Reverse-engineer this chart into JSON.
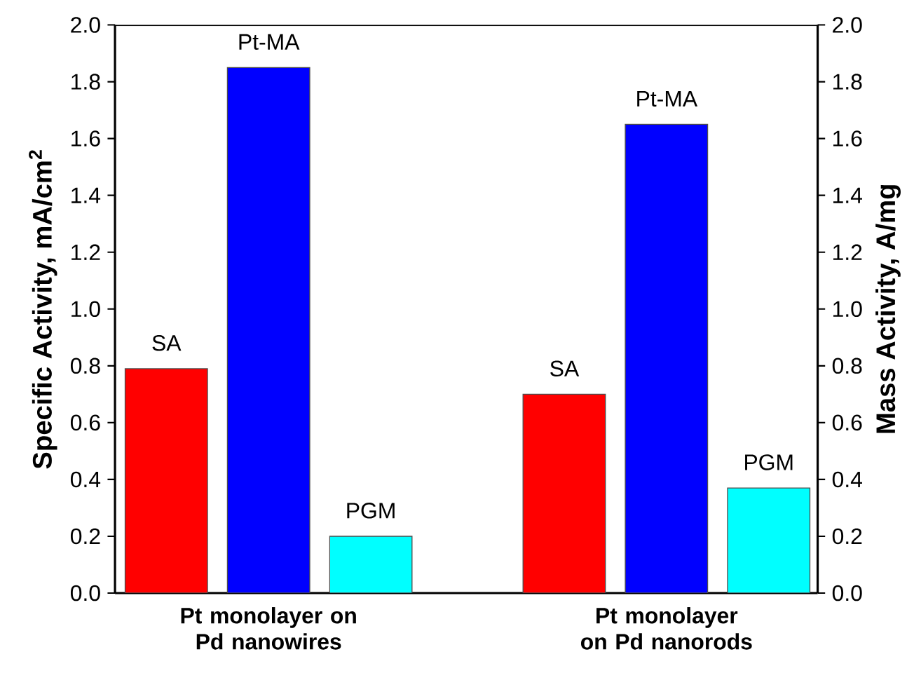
{
  "chart_data": {
    "type": "bar",
    "ylabel": "Specific Activity, mA/cm$^{2}$",
    "y2label": "Mass Activity, A/mg",
    "categories": [
      "Pt monolayer on Pd nanowires",
      "Pt monolayer on Pd nanorods"
    ],
    "series": [
      {
        "name": "SA",
        "color": "#ff0000",
        "values": [
          0.79,
          0.7
        ]
      },
      {
        "name": "Pt-MA",
        "color": "#0000ff",
        "values": [
          1.85,
          1.65
        ]
      },
      {
        "name": "PGM",
        "color": "#00ffff",
        "values": [
          0.2,
          0.37
        ]
      }
    ],
    "ylim": [
      0,
      2.0
    ],
    "yticks": [
      {
        "value": 0,
        "label": "0.0"
      },
      {
        "value": 0.2,
        "label": "0.2"
      },
      {
        "value": 0.4,
        "label": "0.4"
      },
      {
        "value": 0.6,
        "label": "0.6"
      },
      {
        "value": 0.8,
        "label": "0.8"
      },
      {
        "value": 1.0,
        "label": "1.0"
      },
      {
        "value": 1.2,
        "label": "1.2"
      },
      {
        "value": 1.4,
        "label": "1.4"
      },
      {
        "value": 1.6,
        "label": "1.6"
      },
      {
        "value": 1.8,
        "label": "1.8"
      },
      {
        "value": 2.0,
        "label": "2.0"
      }
    ],
    "y2lim": [
      0,
      2.0
    ],
    "y2ticks": [
      {
        "value": 0,
        "label": "0.0"
      },
      {
        "value": 0.2,
        "label": "0.2"
      },
      {
        "value": 0.4,
        "label": "0.4"
      },
      {
        "value": 0.6,
        "label": "0.6"
      },
      {
        "value": 0.8,
        "label": "0.8"
      },
      {
        "value": 1.0,
        "label": "1.0"
      },
      {
        "value": 1.2,
        "label": "1.2"
      },
      {
        "value": 1.4,
        "label": "1.4"
      },
      {
        "value": 1.6,
        "label": "1.6"
      },
      {
        "value": 1.8,
        "label": "1.8"
      },
      {
        "value": 2.0,
        "label": "2.0"
      }
    ],
    "grid": false
  }
}
